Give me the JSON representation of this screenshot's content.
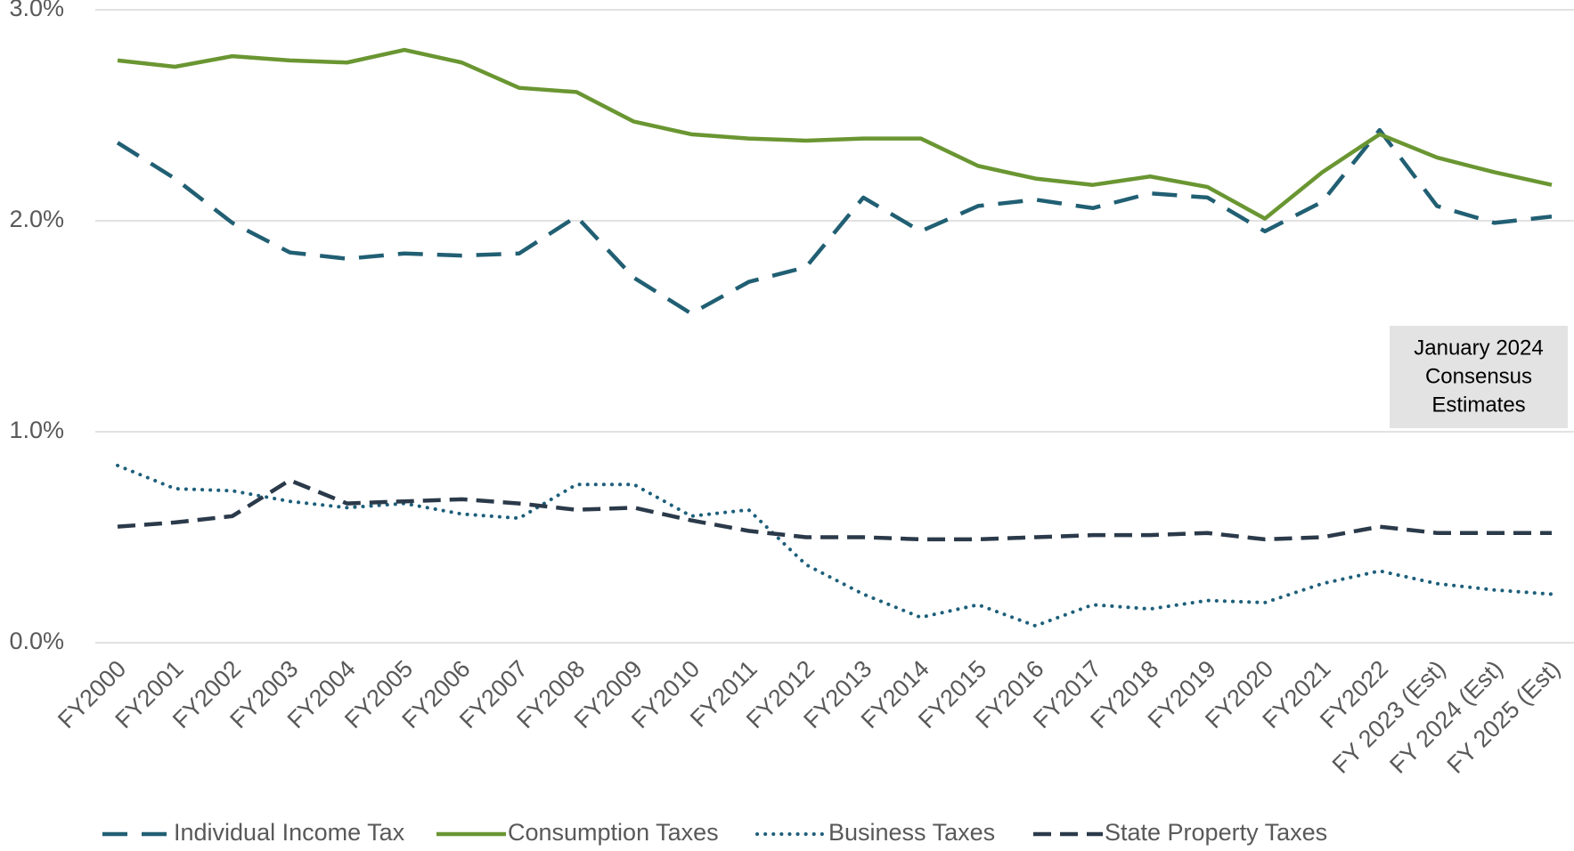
{
  "chart_data": {
    "type": "line",
    "categories": [
      "FY2000",
      "FY2001",
      "FY2002",
      "FY2003",
      "FY2004",
      "FY2005",
      "FY2006",
      "FY2007",
      "FY2008",
      "FY2009",
      "FY2010",
      "FY2011",
      "FY2012",
      "FY2013",
      "FY2014",
      "FY2015",
      "FY2016",
      "FY2017",
      "FY2018",
      "FY2019",
      "FY2020",
      "FY2021",
      "FY2022",
      "FY 2023 (Est)",
      "FY 2024 (Est)",
      "FY 2025 (Est)"
    ],
    "series": [
      {
        "name": "Individual Income Tax",
        "color": "#215f73",
        "dash": "dashed",
        "values": [
          2.37,
          2.2,
          1.99,
          1.85,
          1.82,
          1.845,
          1.835,
          1.845,
          2.02,
          1.73,
          1.56,
          1.71,
          1.78,
          2.11,
          1.95,
          2.07,
          2.1,
          2.06,
          2.13,
          2.11,
          1.95,
          2.09,
          2.43,
          2.07,
          1.99,
          2.02
        ]
      },
      {
        "name": "Consumption Taxes",
        "color": "#6a9632",
        "dash": "solid",
        "values": [
          2.76,
          2.73,
          2.78,
          2.76,
          2.75,
          2.81,
          2.75,
          2.63,
          2.61,
          2.47,
          2.41,
          2.39,
          2.38,
          2.39,
          2.39,
          2.26,
          2.2,
          2.17,
          2.21,
          2.16,
          2.01,
          2.23,
          2.41,
          2.3,
          2.23,
          2.17
        ]
      },
      {
        "name": "Business Taxes",
        "color": "#1d5f7a",
        "dash": "dotted",
        "values": [
          0.84,
          0.73,
          0.72,
          0.67,
          0.64,
          0.66,
          0.61,
          0.59,
          0.75,
          0.75,
          0.6,
          0.63,
          0.37,
          0.23,
          0.12,
          0.18,
          0.08,
          0.18,
          0.16,
          0.2,
          0.19,
          0.28,
          0.34,
          0.28,
          0.25,
          0.23
        ]
      },
      {
        "name": "State Property Taxes",
        "color": "#2b3a4a",
        "dash": "longdash",
        "values": [
          0.55,
          0.57,
          0.6,
          0.77,
          0.66,
          0.67,
          0.68,
          0.66,
          0.63,
          0.64,
          0.58,
          0.53,
          0.5,
          0.5,
          0.49,
          0.49,
          0.5,
          0.51,
          0.51,
          0.52,
          0.49,
          0.5,
          0.55,
          0.52,
          0.52,
          0.52
        ]
      }
    ],
    "ylim": [
      0,
      3
    ],
    "yticks": [
      {
        "value": 0,
        "label": "0.0%"
      },
      {
        "value": 1,
        "label": "1.0%"
      },
      {
        "value": 2,
        "label": "2.0%"
      },
      {
        "value": 3,
        "label": "3.0%"
      }
    ],
    "grid": true,
    "legend": "bottom",
    "annotation": [
      "January 2024",
      "Consensus",
      "Estimates"
    ]
  }
}
